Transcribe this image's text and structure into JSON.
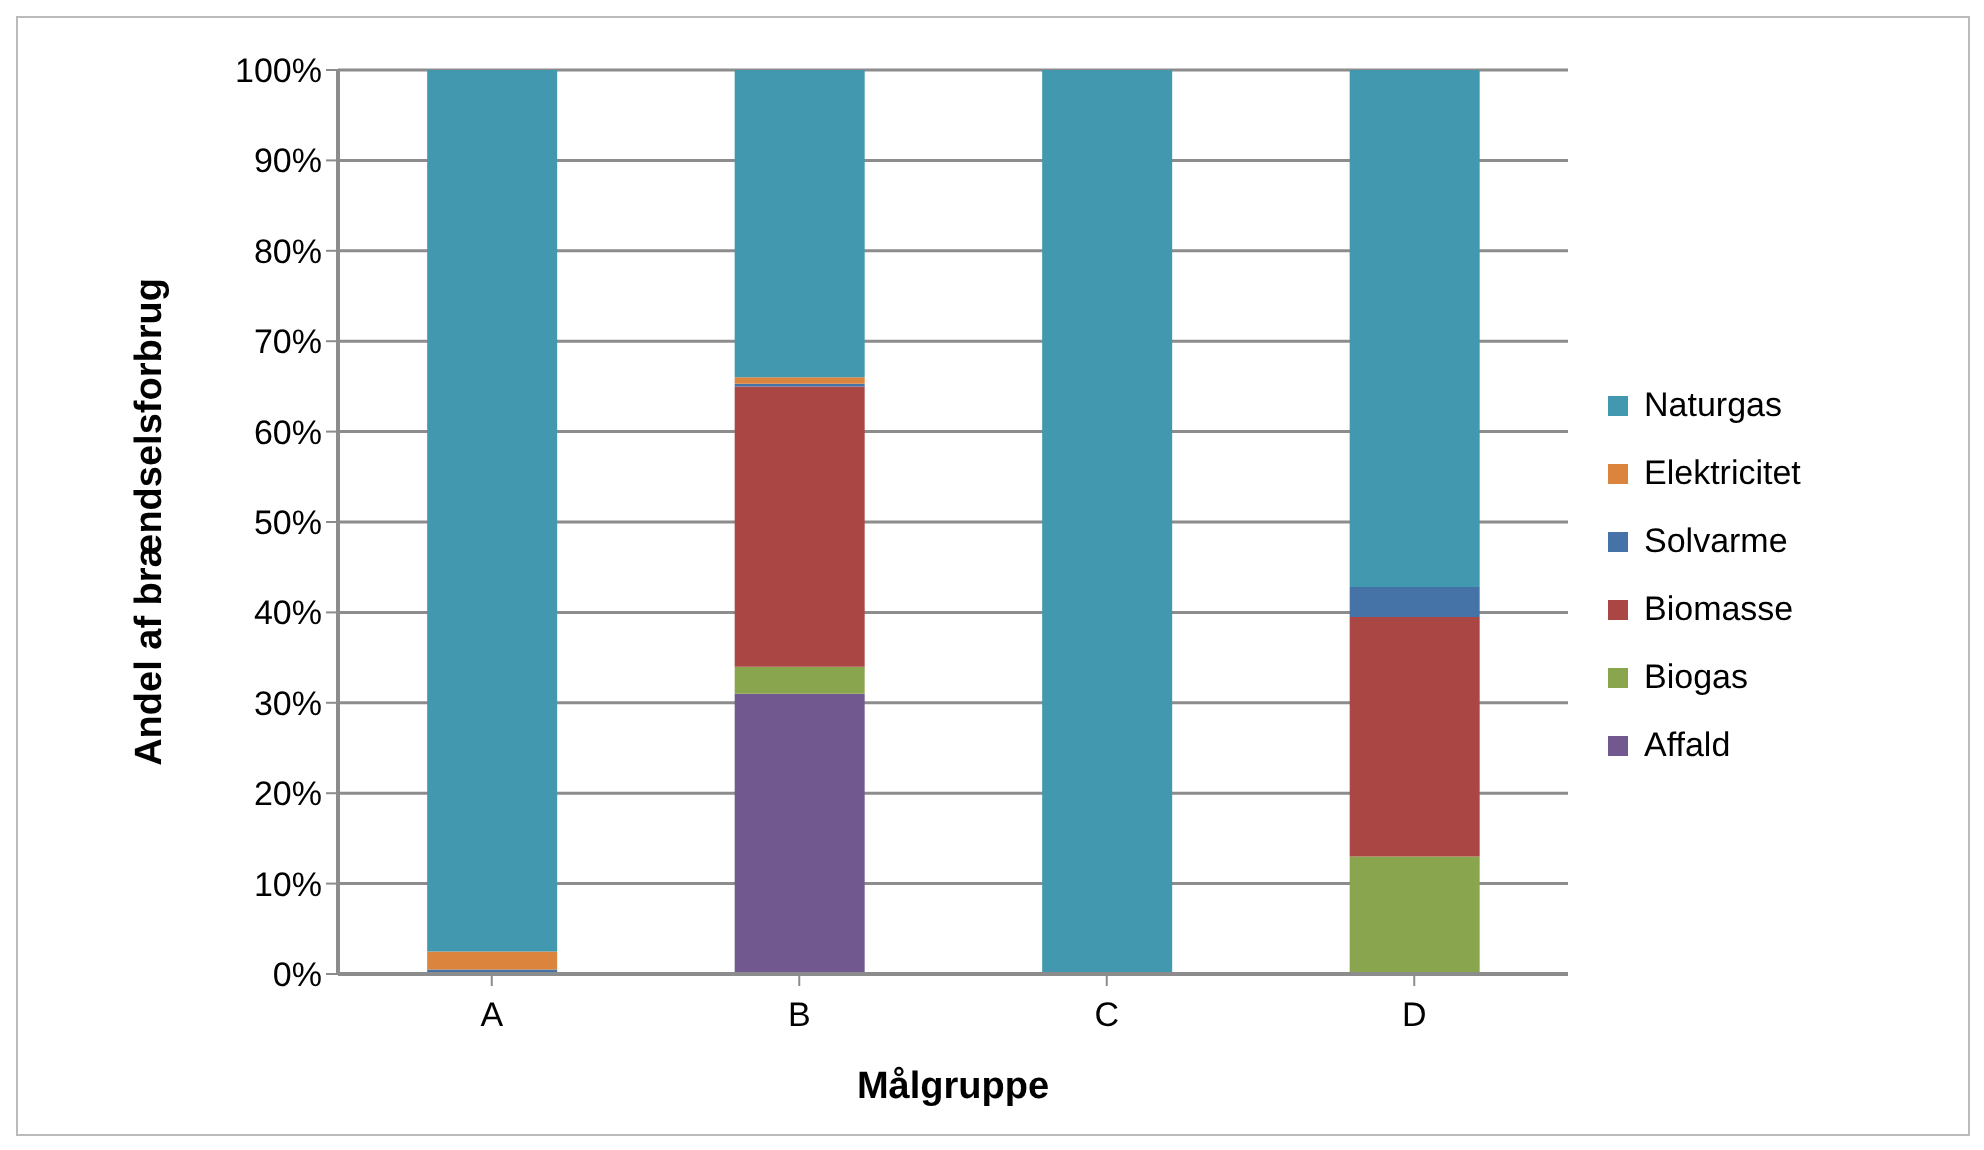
{
  "chart_data": {
    "type": "bar",
    "stacked": true,
    "xlabel": "Målgruppe",
    "ylabel": "Andel af brændselsforbrug",
    "categories": [
      "A",
      "B",
      "C",
      "D"
    ],
    "series": [
      {
        "name": "Affald",
        "color": "#71588f",
        "values": [
          0,
          31,
          0,
          0
        ]
      },
      {
        "name": "Biogas",
        "color": "#89a54e",
        "values": [
          0,
          3,
          0,
          13
        ]
      },
      {
        "name": "Biomasse",
        "color": "#aa4643",
        "values": [
          0,
          31,
          0,
          26.5
        ]
      },
      {
        "name": "Solvarme",
        "color": "#4572a7",
        "values": [
          0.5,
          0.3,
          0,
          3.3
        ]
      },
      {
        "name": "Elektricitet",
        "color": "#db843d",
        "values": [
          2,
          0.7,
          0,
          0
        ]
      },
      {
        "name": "Naturgas",
        "color": "#4198af",
        "values": [
          97.5,
          34,
          100,
          57.2
        ]
      }
    ],
    "ylim": [
      0,
      100
    ],
    "yticks": [
      {
        "value": 0,
        "label": "0%"
      },
      {
        "value": 10,
        "label": "10%"
      },
      {
        "value": 20,
        "label": "20%"
      },
      {
        "value": 30,
        "label": "30%"
      },
      {
        "value": 40,
        "label": "40%"
      },
      {
        "value": 50,
        "label": "50%"
      },
      {
        "value": 60,
        "label": "60%"
      },
      {
        "value": 70,
        "label": "70%"
      },
      {
        "value": 80,
        "label": "80%"
      },
      {
        "value": 90,
        "label": "90%"
      },
      {
        "value": 100,
        "label": "100%"
      }
    ],
    "grid": "y",
    "legend": "right"
  }
}
